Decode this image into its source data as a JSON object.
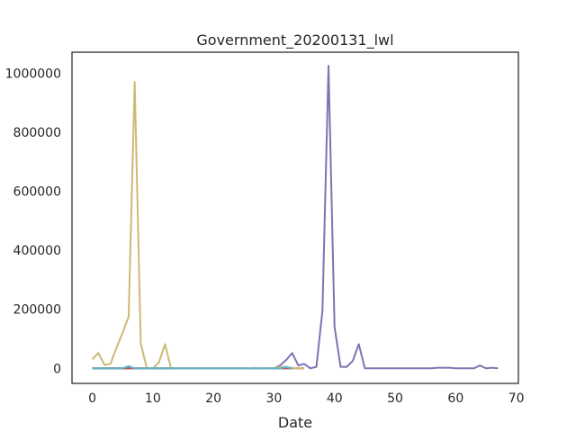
{
  "chart_data": {
    "type": "line",
    "title": "Government_20200131_lwl",
    "xlabel": "Date",
    "ylabel": "",
    "xlim": [
      -3.35,
      70.35
    ],
    "ylim": [
      -51000,
      1071000
    ],
    "xticks": [
      0,
      10,
      20,
      30,
      40,
      50,
      60,
      70
    ],
    "yticks": [
      0,
      200000,
      400000,
      600000,
      800000,
      1000000
    ],
    "grid": false,
    "legend": "none",
    "series": [
      {
        "color": "#4c72b0",
        "points": [
          [
            0,
            0
          ],
          [
            1,
            0
          ],
          [
            2,
            0
          ],
          [
            3,
            0
          ],
          [
            4,
            0
          ],
          [
            5,
            0
          ],
          [
            6,
            500
          ],
          [
            7,
            0
          ],
          [
            8,
            0
          ],
          [
            9,
            0
          ],
          [
            10,
            0
          ],
          [
            11,
            0
          ],
          [
            12,
            0
          ],
          [
            13,
            0
          ],
          [
            30,
            0
          ],
          [
            31,
            0
          ],
          [
            32,
            0
          ],
          [
            33,
            0
          ]
        ]
      },
      {
        "color": "#55a868",
        "points": [
          [
            0,
            0
          ],
          [
            1,
            0
          ],
          [
            2,
            0
          ],
          [
            3,
            0
          ],
          [
            4,
            0
          ],
          [
            5,
            0
          ],
          [
            6,
            0
          ],
          [
            7,
            0
          ],
          [
            8,
            0
          ],
          [
            9,
            0
          ],
          [
            10,
            0
          ],
          [
            11,
            0
          ],
          [
            12,
            0
          ],
          [
            13,
            0
          ]
        ]
      },
      {
        "color": "#c44e52",
        "points": [
          [
            0,
            0
          ],
          [
            1,
            0
          ],
          [
            2,
            0
          ],
          [
            3,
            0
          ],
          [
            4,
            0
          ],
          [
            5,
            0
          ],
          [
            6,
            0
          ],
          [
            7,
            0
          ],
          [
            8,
            0
          ],
          [
            9,
            0
          ],
          [
            10,
            0
          ],
          [
            11,
            0
          ],
          [
            12,
            0
          ],
          [
            13,
            0
          ],
          [
            30,
            0
          ],
          [
            31,
            500
          ],
          [
            32,
            0
          ],
          [
            33,
            0
          ],
          [
            34,
            0
          ],
          [
            35,
            0
          ]
        ]
      },
      {
        "color": "#8172b2",
        "points": [
          [
            29,
            0
          ],
          [
            30,
            0
          ],
          [
            31,
            10000
          ],
          [
            32,
            28000
          ],
          [
            33,
            52000
          ],
          [
            34,
            10000
          ],
          [
            35,
            15000
          ],
          [
            36,
            0
          ],
          [
            37,
            5000
          ],
          [
            38,
            195000
          ],
          [
            39,
            1025000
          ],
          [
            40,
            140000
          ],
          [
            41,
            5000
          ],
          [
            42,
            5000
          ],
          [
            43,
            25000
          ],
          [
            44,
            82000
          ],
          [
            45,
            0
          ],
          [
            46,
            0
          ],
          [
            47,
            0
          ],
          [
            48,
            0
          ],
          [
            49,
            0
          ],
          [
            50,
            0
          ],
          [
            52,
            0
          ],
          [
            54,
            0
          ],
          [
            56,
            0
          ],
          [
            57,
            2000
          ],
          [
            58,
            2000
          ],
          [
            59,
            2000
          ],
          [
            60,
            0
          ],
          [
            61,
            0
          ],
          [
            62,
            0
          ],
          [
            63,
            0
          ],
          [
            64,
            10000
          ],
          [
            65,
            0
          ],
          [
            66,
            2000
          ],
          [
            67,
            0
          ]
        ]
      },
      {
        "color": "#ccb974",
        "points": [
          [
            0,
            30000
          ],
          [
            1,
            52000
          ],
          [
            2,
            12000
          ],
          [
            3,
            15000
          ],
          [
            4,
            70000
          ],
          [
            5,
            120000
          ],
          [
            6,
            175000
          ],
          [
            7,
            970000
          ],
          [
            8,
            85000
          ],
          [
            9,
            0
          ],
          [
            10,
            0
          ],
          [
            11,
            20000
          ],
          [
            12,
            82000
          ],
          [
            13,
            0
          ],
          [
            14,
            0
          ],
          [
            15,
            0
          ],
          [
            16,
            0
          ],
          [
            18,
            0
          ],
          [
            20,
            0
          ],
          [
            22,
            0
          ],
          [
            24,
            0
          ],
          [
            26,
            0
          ],
          [
            27,
            2000
          ],
          [
            28,
            0
          ],
          [
            29,
            0
          ],
          [
            30,
            0
          ],
          [
            31,
            5000
          ],
          [
            32,
            5000
          ],
          [
            33,
            0
          ],
          [
            34,
            0
          ],
          [
            35,
            0
          ]
        ]
      },
      {
        "color": "#64b5cd",
        "points": [
          [
            0,
            0
          ],
          [
            1,
            0
          ],
          [
            2,
            0
          ],
          [
            3,
            0
          ],
          [
            4,
            0
          ],
          [
            5,
            0
          ],
          [
            6,
            8000
          ],
          [
            7,
            0
          ],
          [
            8,
            0
          ],
          [
            9,
            0
          ],
          [
            10,
            0
          ],
          [
            11,
            0
          ],
          [
            12,
            0
          ],
          [
            13,
            0
          ],
          [
            30,
            0
          ],
          [
            31,
            0
          ],
          [
            32,
            5000
          ],
          [
            33,
            0
          ]
        ]
      }
    ]
  }
}
